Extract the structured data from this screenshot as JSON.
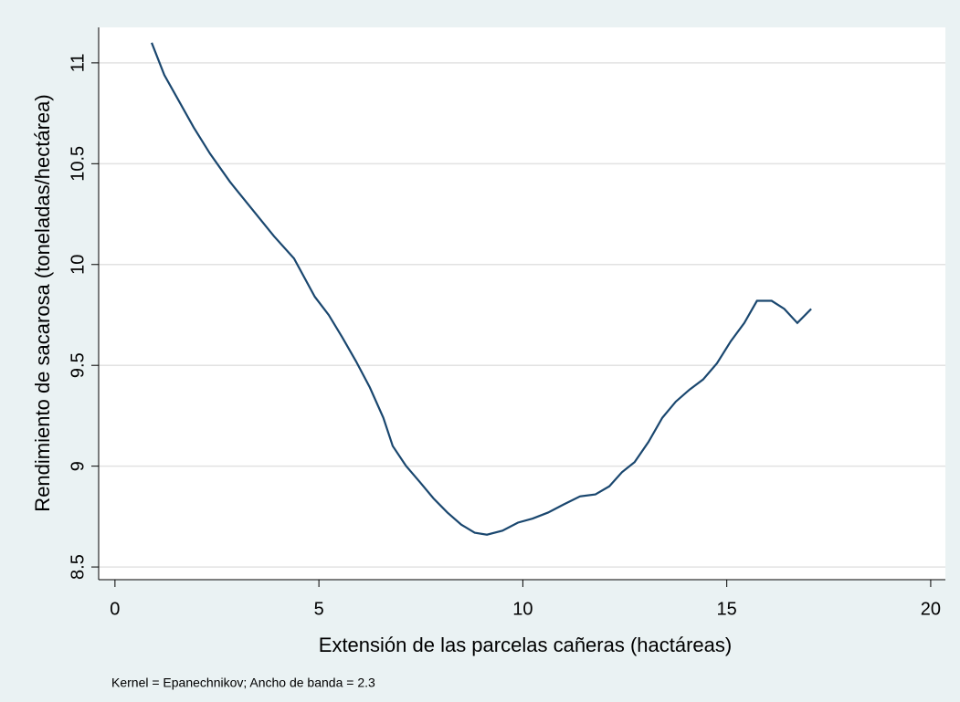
{
  "chart_data": {
    "type": "line",
    "x_label": "Extensión de las parcelas cañeras (hactáreas)",
    "y_label": "Rendimiento de sacarosa (toneladas/hectárea)",
    "note": "Kernel = Epanechnikov; Ancho de banda = 2.3",
    "x": [
      0.9,
      1.21,
      1.57,
      1.93,
      2.33,
      2.82,
      3.34,
      3.9,
      4.39,
      4.9,
      5.24,
      5.57,
      5.91,
      6.25,
      6.58,
      6.81,
      7.14,
      7.48,
      7.81,
      8.15,
      8.49,
      8.82,
      9.12,
      9.5,
      9.88,
      10.24,
      10.62,
      11.0,
      11.4,
      11.78,
      12.12,
      12.43,
      12.74,
      13.08,
      13.42,
      13.75,
      14.09,
      14.42,
      14.76,
      15.1,
      15.43,
      15.74,
      16.1,
      16.41,
      16.73,
      17.07
    ],
    "series": [
      {
        "color": "#1a476f",
        "values": [
          11.1,
          10.94,
          10.81,
          10.68,
          10.55,
          10.41,
          10.28,
          10.14,
          10.03,
          9.84,
          9.75,
          9.64,
          9.52,
          9.39,
          9.24,
          9.1,
          9.0,
          8.92,
          8.84,
          8.77,
          8.71,
          8.67,
          8.66,
          8.68,
          8.72,
          8.74,
          8.77,
          8.81,
          8.85,
          8.86,
          8.9,
          8.97,
          9.02,
          9.12,
          9.24,
          9.32,
          9.38,
          9.43,
          9.51,
          9.62,
          9.71,
          9.82,
          9.82,
          9.78,
          9.71,
          9.78
        ]
      }
    ],
    "xlim": [
      -0.4,
      20.36
    ],
    "ylim": [
      8.437,
      11.176
    ],
    "xticks": [
      0,
      5,
      10,
      15,
      20
    ],
    "yticks": [
      8.5,
      9,
      9.5,
      10,
      10.5,
      11
    ],
    "grid": true
  }
}
